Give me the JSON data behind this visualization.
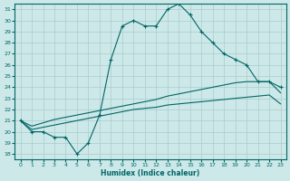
{
  "xlabel": "Humidex (Indice chaleur)",
  "xlim": [
    -0.5,
    23.5
  ],
  "ylim": [
    17.5,
    31.5
  ],
  "xticks": [
    0,
    1,
    2,
    3,
    4,
    5,
    6,
    7,
    8,
    9,
    10,
    11,
    12,
    13,
    14,
    15,
    16,
    17,
    18,
    19,
    20,
    21,
    22,
    23
  ],
  "yticks": [
    18,
    19,
    20,
    21,
    22,
    23,
    24,
    25,
    26,
    27,
    28,
    29,
    30,
    31
  ],
  "bg_color": "#cde8e8",
  "line_color": "#006666",
  "grid_color": "#aacccc",
  "line1_x": [
    0,
    1,
    2,
    3,
    4,
    5,
    6,
    7,
    8,
    9,
    10,
    11,
    12,
    13,
    14,
    15,
    16,
    17,
    18,
    19,
    20,
    21,
    22,
    23
  ],
  "line1_y": [
    21,
    20,
    20,
    19.5,
    19.5,
    18,
    19,
    21.5,
    26.5,
    29.5,
    30,
    29.5,
    29.5,
    31,
    31.5,
    30.5,
    29,
    28,
    27,
    26.5,
    26,
    24.5,
    24.5,
    24
  ],
  "line2_x": [
    0,
    1,
    2,
    3,
    4,
    5,
    6,
    7,
    8,
    9,
    10,
    11,
    12,
    13,
    14,
    15,
    16,
    17,
    18,
    19,
    20,
    21,
    22,
    23
  ],
  "line2_y": [
    21,
    20.2,
    20.4,
    20.6,
    20.8,
    21,
    21.2,
    21.4,
    21.6,
    21.8,
    22,
    22.1,
    22.2,
    22.4,
    22.5,
    22.6,
    22.7,
    22.8,
    22.9,
    23,
    23.1,
    23.2,
    23.3,
    22.5
  ],
  "line3_x": [
    0,
    1,
    2,
    3,
    4,
    5,
    6,
    7,
    8,
    9,
    10,
    11,
    12,
    13,
    14,
    15,
    16,
    17,
    18,
    19,
    20,
    21,
    22,
    23
  ],
  "line3_y": [
    21,
    20.5,
    20.8,
    21.1,
    21.3,
    21.5,
    21.7,
    21.9,
    22.1,
    22.3,
    22.5,
    22.7,
    22.9,
    23.2,
    23.4,
    23.6,
    23.8,
    24,
    24.2,
    24.4,
    24.5,
    24.5,
    24.5,
    23.5
  ]
}
